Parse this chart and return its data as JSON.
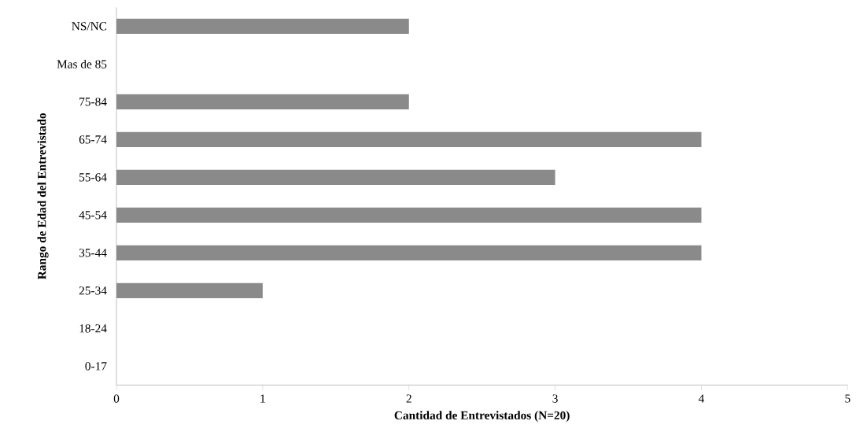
{
  "chart_data": {
    "type": "bar",
    "orientation": "horizontal",
    "xlabel": "Cantidad de Entrevistados (N=20)",
    "ylabel": "Rango de Edad del Entrevistado",
    "categories": [
      "NS/NC",
      "Mas de 85",
      "75-84",
      "65-74",
      "55-64",
      "45-54",
      "35-44",
      "25-34",
      "18-24",
      "0-17"
    ],
    "values": [
      2,
      0,
      2,
      4,
      3,
      4,
      4,
      1,
      0,
      0
    ],
    "color": "#8a8a8a",
    "xlim": [
      0,
      5
    ],
    "xticks": [
      0,
      1,
      2,
      3,
      4,
      5
    ],
    "grid": false
  }
}
